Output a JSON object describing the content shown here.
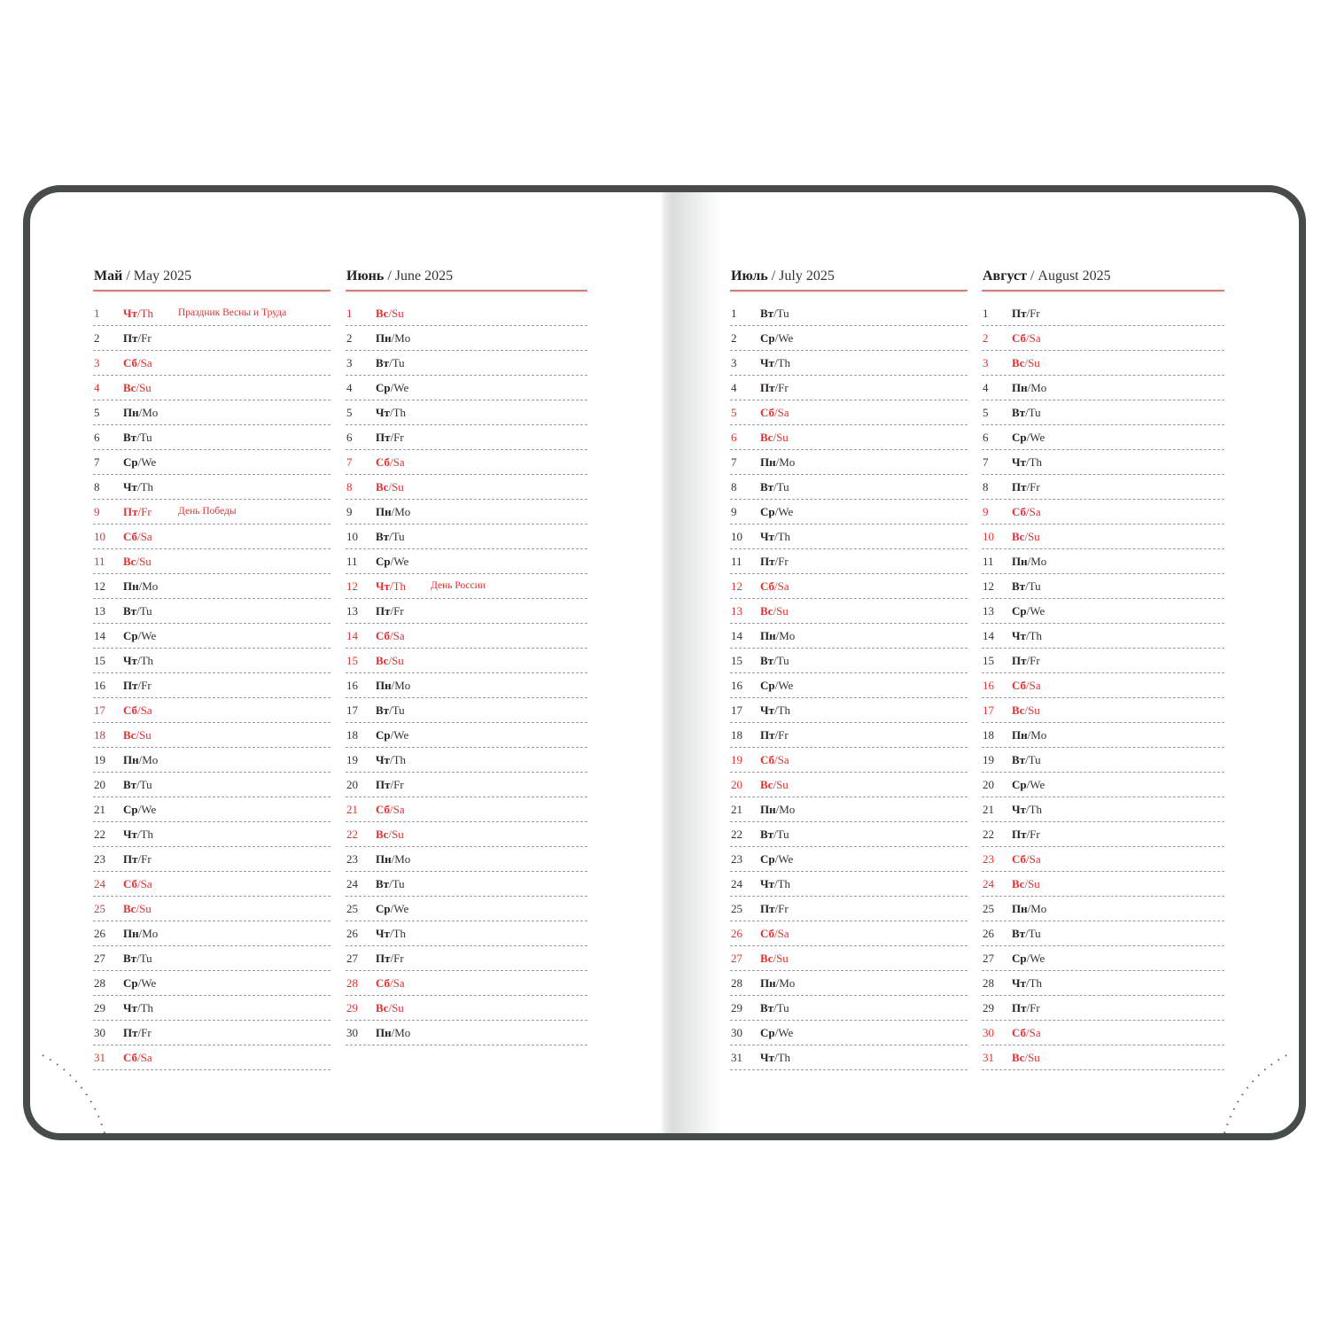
{
  "colors": {
    "accent_red": "#ee2a2a",
    "cover": "#464b4b",
    "rule": "#f07070"
  },
  "weekdays": [
    {
      "ru": "Пн",
      "en": "Mo"
    },
    {
      "ru": "Вт",
      "en": "Tu"
    },
    {
      "ru": "Ср",
      "en": "We"
    },
    {
      "ru": "Чт",
      "en": "Th"
    },
    {
      "ru": "Пт",
      "en": "Fr"
    },
    {
      "ru": "Сб",
      "en": "Sa"
    },
    {
      "ru": "Вс",
      "en": "Su"
    }
  ],
  "months": [
    {
      "title_ru": "Май",
      "title_en": "/ May 2025",
      "first_weekday": 3,
      "days": 31,
      "holidays": {
        "1": "Праздник Весны и Труда",
        "9": "День Победы"
      }
    },
    {
      "title_ru": "Июнь",
      "title_en": "/ June 2025",
      "first_weekday": 6,
      "days": 30,
      "holidays": {
        "12": "День России"
      }
    },
    {
      "title_ru": "Июль",
      "title_en": "/ July 2025",
      "first_weekday": 1,
      "days": 31,
      "holidays": {}
    },
    {
      "title_ru": "Август",
      "title_en": "/ August 2025",
      "first_weekday": 4,
      "days": 31,
      "holidays": {}
    }
  ]
}
